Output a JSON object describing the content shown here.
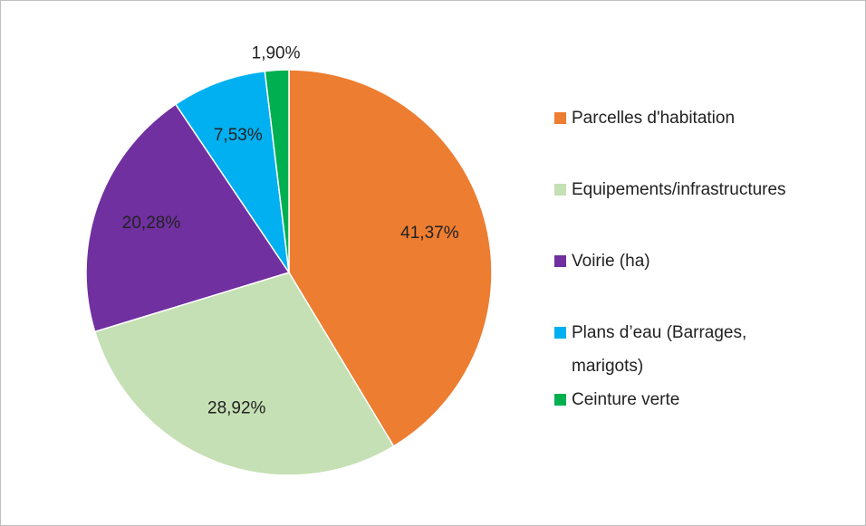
{
  "chart_data": {
    "type": "pie",
    "categories": [
      "Parcelles d'habitation",
      "Equipements/infrastructures",
      "Voirie (ha)",
      "Plans d’eau (Barrages, marigots)",
      "Ceinture verte"
    ],
    "values": [
      41.37,
      28.92,
      20.28,
      7.53,
      1.9
    ],
    "value_labels": [
      "41,37%",
      "28,92%",
      "20,28%",
      "7,53%",
      "1,90%"
    ],
    "colors": [
      "#ED7D31",
      "#C5E0B4",
      "#7030A0",
      "#00B0F0",
      "#00B050"
    ],
    "legend": "right"
  }
}
